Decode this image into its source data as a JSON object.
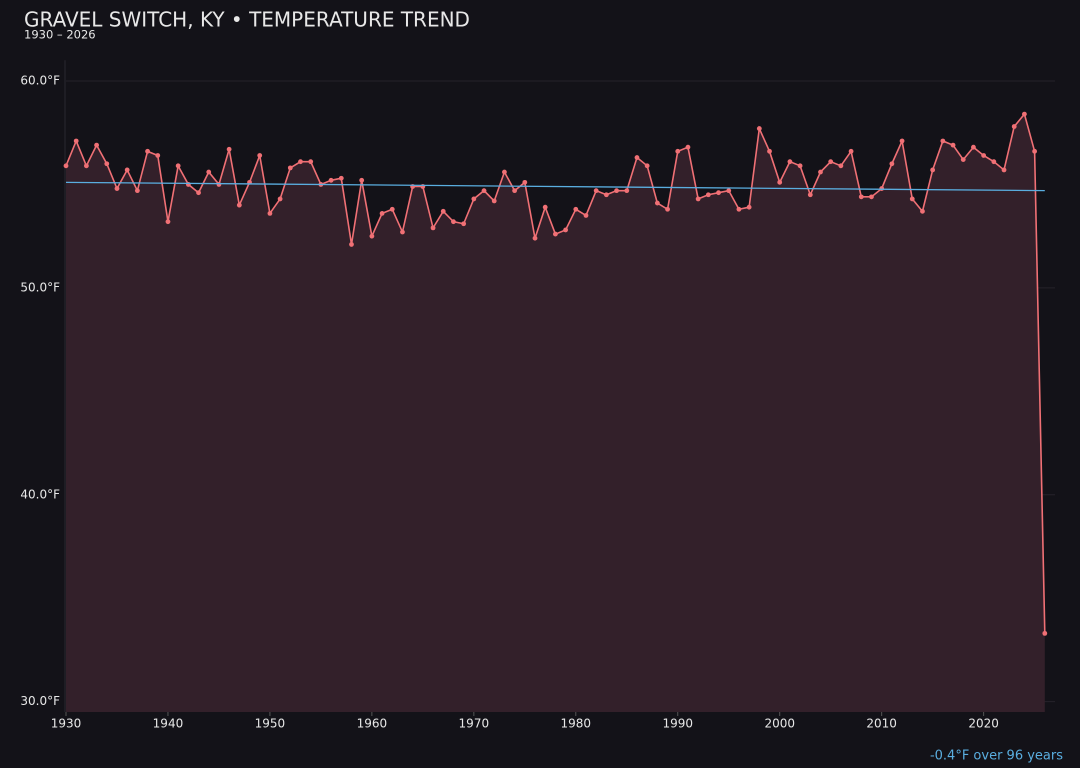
{
  "chart_data": {
    "type": "line",
    "title": "GRAVEL SWITCH, KY • TEMPERATURE TREND",
    "subtitle": "1930 – 2026",
    "annotation": "-0.4°F over 96 years",
    "x": [
      1930,
      1931,
      1932,
      1933,
      1934,
      1935,
      1936,
      1937,
      1938,
      1939,
      1940,
      1941,
      1942,
      1943,
      1944,
      1945,
      1946,
      1947,
      1948,
      1949,
      1950,
      1951,
      1952,
      1953,
      1954,
      1955,
      1956,
      1957,
      1958,
      1959,
      1960,
      1961,
      1962,
      1963,
      1964,
      1965,
      1966,
      1967,
      1968,
      1969,
      1970,
      1971,
      1972,
      1973,
      1974,
      1975,
      1976,
      1977,
      1978,
      1979,
      1980,
      1981,
      1982,
      1983,
      1984,
      1985,
      1986,
      1987,
      1988,
      1989,
      1990,
      1991,
      1992,
      1993,
      1994,
      1995,
      1996,
      1997,
      1998,
      1999,
      2000,
      2001,
      2002,
      2003,
      2004,
      2005,
      2006,
      2007,
      2008,
      2009,
      2010,
      2011,
      2012,
      2013,
      2014,
      2015,
      2016,
      2017,
      2018,
      2019,
      2020,
      2021,
      2022,
      2023,
      2024,
      2025,
      2026
    ],
    "series": [
      {
        "color": "#f07075",
        "values": [
          55.9,
          57.1,
          55.9,
          56.9,
          56.0,
          54.8,
          55.7,
          54.7,
          56.6,
          56.4,
          53.2,
          55.9,
          55.0,
          54.6,
          55.6,
          55.0,
          56.7,
          54.0,
          55.1,
          56.4,
          53.6,
          54.3,
          55.8,
          56.1,
          56.1,
          55.0,
          55.2,
          55.3,
          52.1,
          55.2,
          52.5,
          53.6,
          53.8,
          52.7,
          54.9,
          54.9,
          52.9,
          53.7,
          53.2,
          53.1,
          54.3,
          54.7,
          54.2,
          55.6,
          54.7,
          55.1,
          52.4,
          53.9,
          52.6,
          52.8,
          53.8,
          53.5,
          54.7,
          54.5,
          54.7,
          54.7,
          56.3,
          55.9,
          54.1,
          53.8,
          56.6,
          56.8,
          54.3,
          54.5,
          54.6,
          54.7,
          53.8,
          53.9,
          57.7,
          56.6,
          55.1,
          56.1,
          55.9,
          54.5,
          55.6,
          56.1,
          55.9,
          56.6,
          54.4,
          54.4,
          54.8,
          56.0,
          57.1,
          54.3,
          53.7,
          55.7,
          57.1,
          56.9,
          56.2,
          56.8,
          56.4,
          56.1,
          55.7,
          57.8,
          58.4,
          56.6,
          33.3
        ]
      }
    ],
    "trend": {
      "color": "#5aaee0",
      "x": [
        1930,
        2026
      ],
      "values": [
        55.1,
        54.7
      ]
    },
    "area_color": "#33202a",
    "xlim": [
      1930,
      2027
    ],
    "xticks": [
      1930,
      1940,
      1950,
      1960,
      1970,
      1980,
      1990,
      2000,
      2010,
      2020
    ],
    "ylim": [
      29.5,
      61
    ],
    "yticks": [
      {
        "value": 30,
        "label": "30.0°F"
      },
      {
        "value": 40,
        "label": "40.0°F"
      },
      {
        "value": 50,
        "label": "50.0°F"
      },
      {
        "value": 60,
        "label": "60.0°F"
      }
    ],
    "grid": true
  }
}
